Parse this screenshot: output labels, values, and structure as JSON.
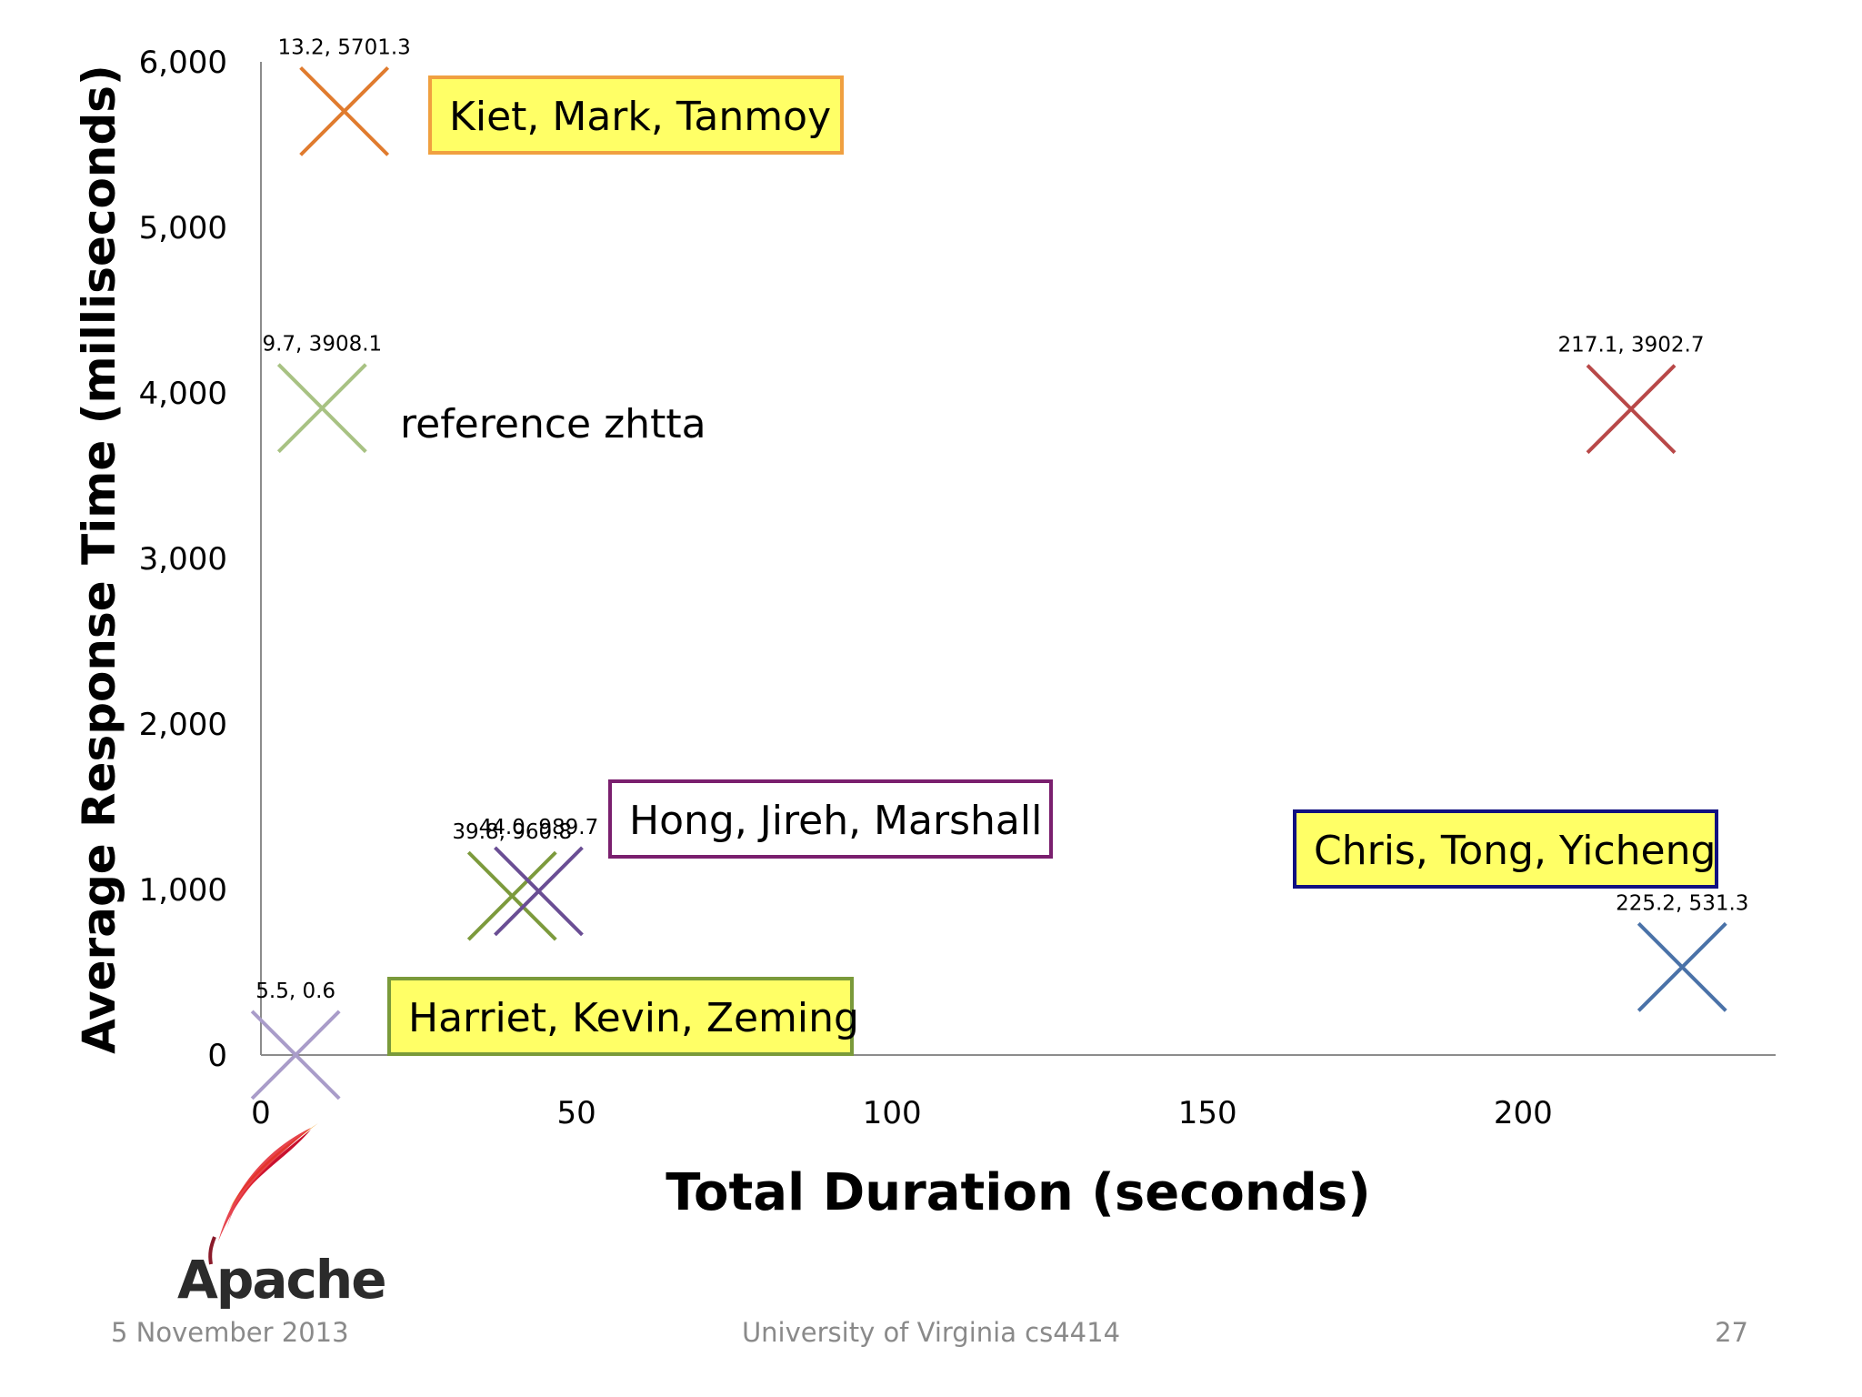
{
  "chart_data": {
    "type": "scatter",
    "xlabel": "Total Duration (seconds)",
    "ylabel": "Average Response Time (milliseconds)",
    "xlim": [
      0,
      240
    ],
    "ylim": [
      0,
      6000
    ],
    "x_ticks": [
      "0",
      "50",
      "100",
      "150",
      "200"
    ],
    "y_ticks": [
      "0",
      "1,000",
      "2,000",
      "3,000",
      "4,000",
      "5,000",
      "6,000"
    ],
    "grid": false,
    "marker": "x",
    "points": [
      {
        "x": 13.2,
        "y": 5701.3,
        "label": "13.2, 5701.3",
        "color": "#e07b2e"
      },
      {
        "x": 9.7,
        "y": 3908.1,
        "label": "9.7, 3908.1",
        "color": "#a8c283"
      },
      {
        "x": 217.1,
        "y": 3902.7,
        "label": "217.1, 3902.7",
        "color": "#b84848"
      },
      {
        "x": 39.8,
        "y": 960.8,
        "label": "39.8, 960.8",
        "color": "#7c9a3c"
      },
      {
        "x": 44.0,
        "y": 989.7,
        "label": "44.0, 989.7",
        "color": "#6a4e94"
      },
      {
        "x": 5.5,
        "y": 0.6,
        "label": "5.5, 0.6",
        "color": "#a99cc9"
      },
      {
        "x": 225.2,
        "y": 531.3,
        "label": "225.2, 531.3",
        "color": "#4a72a8"
      }
    ],
    "annotations": [
      {
        "text": "Kiet, Mark, Tanmoy",
        "boxed": true,
        "fill": "#ffff66",
        "border": "#f0a040"
      },
      {
        "text": "reference zhtta",
        "boxed": false
      },
      {
        "text": "Hong, Jireh, Marshall",
        "boxed": true,
        "fill": "#ffffff",
        "border": "#7a1f6e"
      },
      {
        "text": "Chris, Tong, Yicheng",
        "boxed": true,
        "fill": "#ffff66",
        "border": "#101080"
      },
      {
        "text": "Harriet, Kevin, Zeming",
        "boxed": true,
        "fill": "#ffff66",
        "border": "#7a9a3a"
      }
    ]
  },
  "logo": {
    "text": "Apache"
  },
  "footer": {
    "date": "5 November 2013",
    "center": "University of Virginia cs4414",
    "page": "27"
  }
}
